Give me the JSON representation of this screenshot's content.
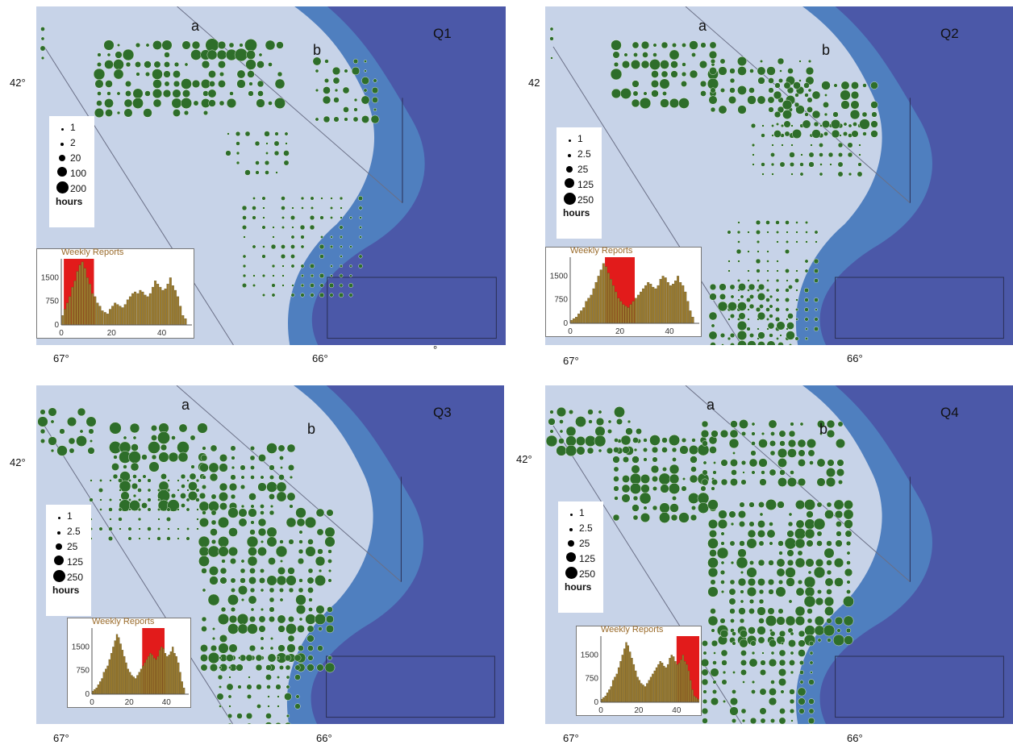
{
  "colors": {
    "deep_water": "#4b58a8",
    "mid_water": "#4f7fbf",
    "bank": "#c7d3e8",
    "dot": "#2e6e2a",
    "hist_bar": "#9a7a2e",
    "hist_highlight": "#e21b1b",
    "line": "#6a6f86"
  },
  "panels": [
    {
      "id": "Q1",
      "label": "Q1",
      "point_a": "a",
      "point_b": "b",
      "lat": "42°",
      "lon_left": "67°",
      "lon_mid": "66°",
      "lon_extra": "°",
      "legend": {
        "items": [
          "1",
          "2",
          "20",
          "100",
          "200"
        ],
        "unit": "hours"
      },
      "inset": {
        "title": "Weekly Reports",
        "y_ticks": [
          "1500",
          "750",
          "0"
        ],
        "x_ticks": [
          "0",
          "20",
          "40"
        ],
        "highlight_weeks": [
          1,
          13
        ],
        "weekly_values": [
          300,
          500,
          700,
          900,
          1200,
          1400,
          1700,
          1900,
          2000,
          1800,
          1500,
          1300,
          1000,
          900,
          700,
          600,
          450,
          400,
          350,
          500,
          600,
          700,
          650,
          600,
          550,
          650,
          800,
          900,
          1000,
          1050,
          1000,
          1100,
          1050,
          950,
          900,
          1000,
          1200,
          1400,
          1300,
          1200,
          1100,
          1150,
          1300,
          1500,
          1250,
          1100,
          900,
          600,
          300,
          200
        ]
      }
    },
    {
      "id": "Q2",
      "label": "Q2",
      "point_a": "a",
      "point_b": "b",
      "lat": "42",
      "lon_left": "67°",
      "lon_mid": "66°",
      "lon_extra": "",
      "legend": {
        "items": [
          "1",
          "2.5",
          "25",
          "125",
          "250"
        ],
        "unit": "hours"
      },
      "inset": {
        "title": "Weekly Reports",
        "y_ticks": [
          "1500",
          "750",
          "0"
        ],
        "x_ticks": [
          "0",
          "20",
          "40"
        ],
        "highlight_weeks": [
          14,
          26
        ],
        "weekly_values": [
          100,
          150,
          200,
          300,
          400,
          500,
          700,
          800,
          900,
          1100,
          1300,
          1500,
          1700,
          1900,
          1800,
          1600,
          1400,
          1200,
          1000,
          800,
          700,
          600,
          550,
          500,
          600,
          700,
          800,
          900,
          1000,
          1100,
          1200,
          1300,
          1250,
          1150,
          1100,
          1200,
          1400,
          1500,
          1450,
          1300,
          1200,
          1250,
          1350,
          1500,
          1300,
          1200,
          1000,
          700,
          400,
          200
        ]
      }
    },
    {
      "id": "Q3",
      "label": "Q3",
      "point_a": "a",
      "point_b": "b",
      "lat": "42°",
      "lon_left": "67°",
      "lon_mid": "66°",
      "lon_extra": "",
      "legend": {
        "items": [
          "1",
          "2.5",
          "25",
          "125",
          "250"
        ],
        "unit": "hours"
      },
      "inset": {
        "title": "Weekly Reports",
        "y_ticks": [
          "1500",
          "750",
          "0"
        ],
        "x_ticks": [
          "0",
          "20",
          "40"
        ],
        "highlight_weeks": [
          27,
          39
        ],
        "weekly_values": [
          100,
          150,
          200,
          300,
          400,
          500,
          700,
          800,
          900,
          1100,
          1300,
          1500,
          1700,
          1900,
          1800,
          1600,
          1400,
          1200,
          1000,
          800,
          700,
          600,
          550,
          500,
          600,
          700,
          800,
          900,
          1000,
          1100,
          1200,
          1300,
          1250,
          1150,
          1100,
          1200,
          1400,
          1500,
          1450,
          1300,
          1200,
          1250,
          1350,
          1500,
          1300,
          1200,
          1000,
          700,
          400,
          200
        ]
      }
    },
    {
      "id": "Q4",
      "label": "Q4",
      "point_a": "a",
      "point_b": "b",
      "lat": "42°",
      "lon_left": "67°",
      "lon_mid": "66°",
      "lon_extra": "",
      "legend": {
        "items": [
          "1",
          "2.5",
          "25",
          "125",
          "250"
        ],
        "unit": "hours"
      },
      "inset": {
        "title": "Weekly Reports",
        "y_ticks": [
          "1500",
          "750",
          "0"
        ],
        "x_ticks": [
          "0",
          "20",
          "40"
        ],
        "highlight_weeks": [
          40,
          52
        ],
        "weekly_values": [
          100,
          150,
          200,
          300,
          400,
          500,
          700,
          800,
          900,
          1100,
          1300,
          1500,
          1700,
          1900,
          1800,
          1600,
          1400,
          1200,
          1000,
          800,
          700,
          600,
          550,
          500,
          600,
          700,
          800,
          900,
          1000,
          1100,
          1200,
          1300,
          1250,
          1150,
          1100,
          1200,
          1400,
          1500,
          1450,
          1300,
          1200,
          1250,
          1350,
          1500,
          1300,
          1200,
          1000,
          700,
          400,
          200,
          150,
          100
        ]
      }
    }
  ]
}
